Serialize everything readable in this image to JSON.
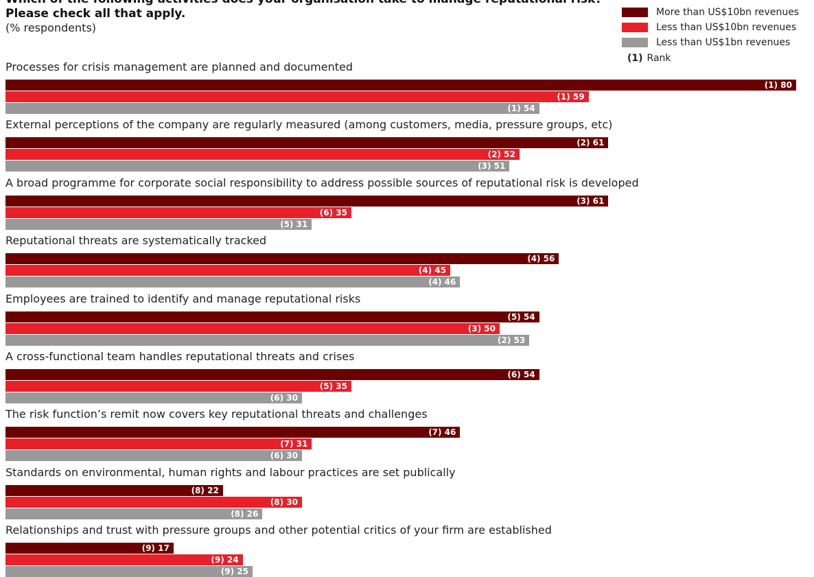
{
  "title_line1": "Which of the following activities does your organisation take to manage reputational risk?",
  "title_line2": "Please check all that apply.",
  "subtitle": "(% respondents)",
  "legend": {
    "items": [
      {
        "label": "More than US$10bn revenues",
        "color": "#6B0000"
      },
      {
        "label": "Less than US$10bn revenues",
        "color": "#E8202A"
      },
      {
        "label": "Less than US$1bn revenues",
        "color": "#999999"
      }
    ],
    "rank_marker": "(1)",
    "rank_label": "Rank"
  },
  "chart_data": {
    "type": "bar",
    "orientation": "horizontal",
    "title": "Which of the following activities does your organisation take to manage reputational risk? Please check all that apply.",
    "subtitle": "(% respondents)",
    "xlim": [
      0,
      80
    ],
    "grid": false,
    "legend_position": "top-right",
    "series": [
      {
        "name": "More than US$10bn revenues",
        "color": "#6B0000",
        "values": [
          80,
          61,
          61,
          56,
          54,
          54,
          46,
          22,
          17
        ],
        "ranks": [
          1,
          2,
          3,
          4,
          5,
          6,
          7,
          8,
          9
        ]
      },
      {
        "name": "Less than US$10bn revenues",
        "color": "#E8202A",
        "values": [
          59,
          52,
          35,
          45,
          50,
          35,
          31,
          30,
          24
        ],
        "ranks": [
          1,
          2,
          6,
          4,
          3,
          5,
          7,
          8,
          9
        ]
      },
      {
        "name": "Less than US$1bn revenues",
        "color": "#999999",
        "values": [
          54,
          51,
          31,
          46,
          53,
          30,
          30,
          26,
          25
        ],
        "ranks": [
          1,
          3,
          5,
          4,
          2,
          6,
          6,
          8,
          9
        ]
      }
    ],
    "categories": [
      "Processes for crisis management are planned and documented",
      "External perceptions of the company are regularly measured (among customers, media, pressure groups, etc)",
      "A broad programme for corporate social responsibility to address possible sources of reputational risk is developed",
      "Reputational threats are systematically tracked",
      "Employees are trained to identify and manage reputational risks",
      "A cross-functional team handles reputational threats and crises",
      "The risk function’s remit now covers key reputational threats and challenges",
      "Standards on environmental, human rights and labour practices are set publically",
      "Relationships and trust with pressure groups and other potential critics of your firm are established"
    ]
  }
}
